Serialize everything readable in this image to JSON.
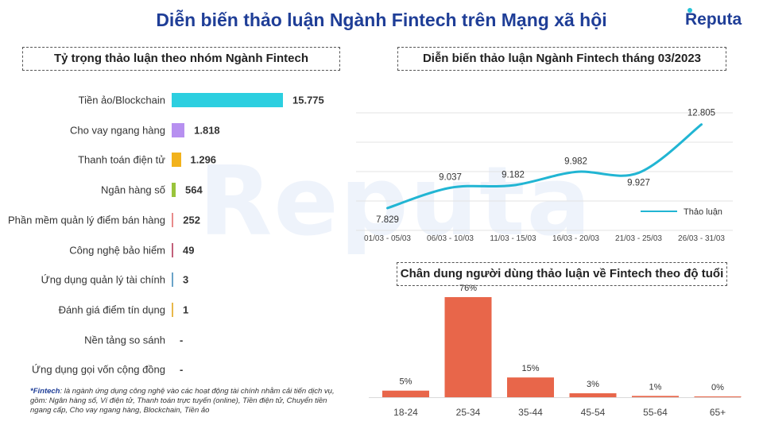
{
  "title": "Diễn biến thảo luận Ngành Fintech trên Mạng xã hội",
  "brand": "Reputa",
  "watermark": "Reputa",
  "footnote": {
    "term": "*Fintech",
    "text": ": là ngành ứng dụng công nghệ vào các hoạt động tài chính nhằm cải tiến dịch vụ, gồm: Ngân hàng số, Ví điện tử, Thanh toán trực tuyến (online), Tiền điện tử, Chuyển tiền ngang cấp, Cho vay ngang hàng, Blockchain, Tiền ảo"
  },
  "colors": {
    "title": "#1f3e97",
    "line": "#21b5d3",
    "age_bar": "#e8664a"
  },
  "chart_data": [
    {
      "type": "bar",
      "orientation": "horizontal",
      "title": "Tỷ trọng thảo luận theo nhóm Ngành Fintech",
      "categories": [
        "Tiền ảo/Blockchain",
        "Cho vay ngang hàng",
        "Thanh toán điện tử",
        "Ngân hàng số",
        "Phần mềm quản lý điểm bán hàng",
        "Công nghệ bảo hiểm",
        "Ứng dụng quản lý tài chính",
        "Đánh giá điểm tín dụng",
        "Nền tảng so sánh",
        "Ứng dụng gọi vốn cộng đồng"
      ],
      "values": [
        15775,
        1818,
        1296,
        564,
        252,
        49,
        3,
        1,
        null,
        null
      ],
      "value_labels": [
        "15.775",
        "1.818",
        "1.296",
        "564",
        "252",
        "49",
        "3",
        "1",
        "-",
        "-"
      ],
      "colors": [
        "#2ccfe0",
        "#b790f0",
        "#f2b21c",
        "#9ac43c",
        "#e88a8a",
        "#c2607a",
        "#6aa3c8",
        "#e8b84a",
        "#cccccc",
        "#cccccc"
      ]
    },
    {
      "type": "line",
      "title": "Diễn biến thảo luận Ngành Fintech tháng 03/2023",
      "categories": [
        "01/03 - 05/03",
        "06/03 - 10/03",
        "11/03 - 15/03",
        "16/03 - 20/03",
        "21/03 - 25/03",
        "26/03 - 31/03"
      ],
      "series": [
        {
          "name": "Thảo luận",
          "values": [
            7829,
            9037,
            9182,
            9982,
            9927,
            12805
          ],
          "labels": [
            "7.829",
            "9.037",
            "9.182",
            "9.982",
            "9.927",
            "12.805"
          ]
        }
      ],
      "legend": "right",
      "grid": true
    },
    {
      "type": "bar",
      "title": "Chân dung người dùng thảo luận về Fintech theo độ tuổi",
      "categories": [
        "18-24",
        "25-34",
        "35-44",
        "45-54",
        "55-64",
        "65+"
      ],
      "values": [
        5,
        76,
        15,
        3,
        1,
        0
      ],
      "value_labels": [
        "5%",
        "76%",
        "15%",
        "3%",
        "1%",
        "0%"
      ],
      "unit": "%"
    }
  ]
}
